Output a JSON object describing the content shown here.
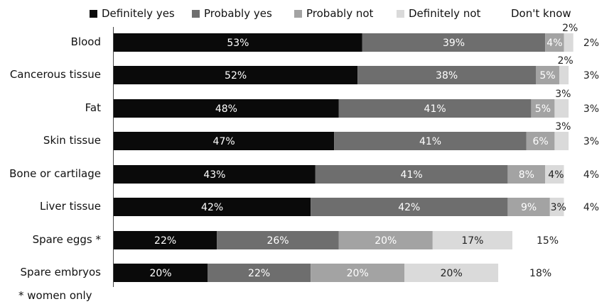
{
  "chart_data": {
    "type": "bar",
    "orientation": "horizontal",
    "stacked": "percent",
    "categories": [
      "Blood",
      "Cancerous tissue",
      "Fat",
      "Skin tissue",
      "Bone or cartilage",
      "Liver tissue",
      "Spare eggs  *",
      "Spare embryos"
    ],
    "series": [
      {
        "name": "Definitely yes",
        "color": "#0a0a0a",
        "values": [
          53,
          52,
          48,
          47,
          43,
          42,
          22,
          20
        ]
      },
      {
        "name": "Probably yes",
        "color": "#6e6e6e",
        "values": [
          39,
          38,
          41,
          41,
          41,
          42,
          26,
          22
        ]
      },
      {
        "name": "Probably not",
        "color": "#a3a3a3",
        "values": [
          4,
          5,
          5,
          6,
          8,
          9,
          20,
          20
        ]
      },
      {
        "name": "Definitely not",
        "color": "#dadada",
        "values": [
          2,
          2,
          3,
          3,
          4,
          3,
          17,
          20
        ]
      },
      {
        "name": "Don't know",
        "color": "#ffffff",
        "values": [
          2,
          3,
          3,
          3,
          4,
          4,
          15,
          18
        ]
      }
    ],
    "data_labels": [
      [
        "53%",
        "39%",
        "4%",
        "2%",
        "2%"
      ],
      [
        "52%",
        "38%",
        "5%",
        "2%",
        "3%"
      ],
      [
        "48%",
        "41%",
        "5%",
        "3%",
        "3%"
      ],
      [
        "47%",
        "41%",
        "6%",
        "3%",
        "3%"
      ],
      [
        "43%",
        "41%",
        "8%",
        "4%",
        "4%"
      ],
      [
        "42%",
        "42%",
        "9%",
        "3%",
        "4%"
      ],
      [
        "22%",
        "26%",
        "20%",
        "17%",
        "15%"
      ],
      [
        "20%",
        "22%",
        "20%",
        "20%",
        "18%"
      ]
    ],
    "legend_placement": "top",
    "grid": false,
    "footnote": "* women only"
  }
}
